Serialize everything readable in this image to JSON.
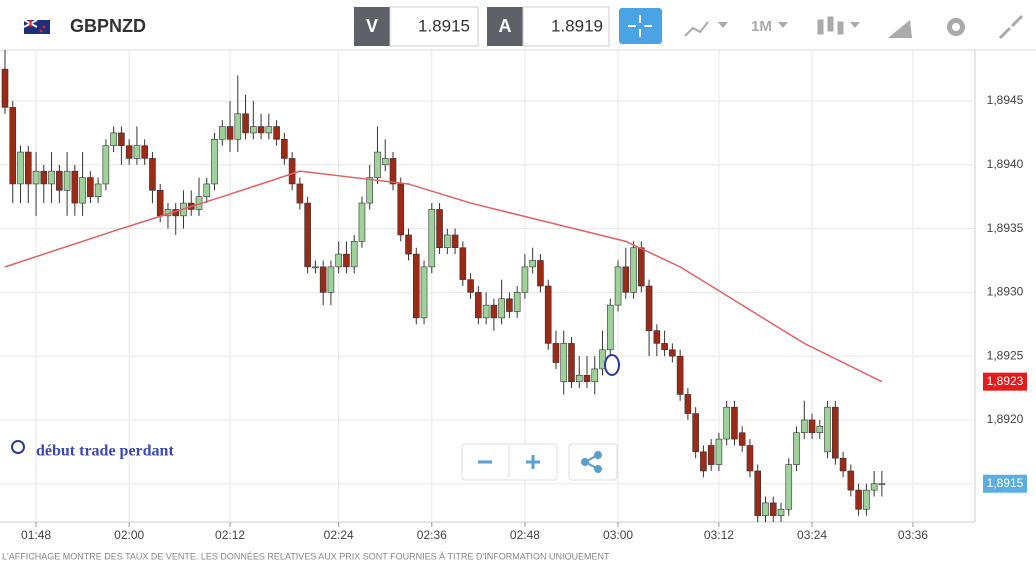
{
  "header": {
    "symbol": "GBPNZD",
    "bid_label": "V",
    "bid": "1.8915",
    "ask_label": "A",
    "ask": "1.8919",
    "timeframe": "1M"
  },
  "annotation": "début trade perdant",
  "disclaimer": "L'AFFICHAGE MONTRE DES TAUX DE VENTE. LES DONNÉES RELATIVES AUX PRIX SONT FOURNIES À TITRE D'INFORMATION UNIQUEMENT",
  "chart_data": {
    "type": "candlestick",
    "ylim": [
      1.8912,
      1.8949
    ],
    "yticks": [
      {
        "value": 1.8945,
        "label": "1,8945"
      },
      {
        "value": 1.894,
        "label": "1,8940"
      },
      {
        "value": 1.8935,
        "label": "1,8935"
      },
      {
        "value": 1.893,
        "label": "1,8930"
      },
      {
        "value": 1.8925,
        "label": "1,8925"
      },
      {
        "value": 1.892,
        "label": "1,8920"
      },
      {
        "value": 1.8915,
        "label": "1,8915"
      }
    ],
    "xticks": [
      {
        "value": 4,
        "label": "01:48"
      },
      {
        "value": 16,
        "label": "02:00"
      },
      {
        "value": 29,
        "label": "02:12"
      },
      {
        "value": 43,
        "label": "02:24"
      },
      {
        "value": 55,
        "label": "02:36"
      },
      {
        "value": 67,
        "label": "02:48"
      },
      {
        "value": 79,
        "label": "03:00"
      },
      {
        "value": 92,
        "label": "03:12"
      },
      {
        "value": 104,
        "label": "03:24"
      },
      {
        "value": 117,
        "label": "03:36"
      }
    ],
    "grid": true,
    "up_color": "#9fd19a",
    "down_color": "#9b2a17",
    "price_tags": [
      {
        "value": 1.8923,
        "label": "1,8923",
        "color": "#e31b1b"
      },
      {
        "value": 1.8915,
        "label": "1,8915",
        "color": "#5aaee0"
      }
    ],
    "moving_average": {
      "color": "#e36060",
      "x": [
        0,
        15,
        28,
        38,
        45,
        52,
        60,
        70,
        80,
        87,
        95,
        103,
        113
      ],
      "values": [
        1.8932,
        1.8935,
        1.89375,
        1.89395,
        1.8939,
        1.89385,
        1.8937,
        1.89355,
        1.8934,
        1.8932,
        1.8929,
        1.8926,
        1.8923
      ]
    },
    "candles": [
      {
        "open": 1.89475,
        "high": 1.8949,
        "low": 1.8944,
        "close": 1.89445
      },
      {
        "open": 1.89445,
        "high": 1.8945,
        "low": 1.8937,
        "close": 1.89385
      },
      {
        "open": 1.89385,
        "high": 1.89415,
        "low": 1.8937,
        "close": 1.8941
      },
      {
        "open": 1.8941,
        "high": 1.89415,
        "low": 1.8937,
        "close": 1.89385
      },
      {
        "open": 1.89385,
        "high": 1.8941,
        "low": 1.8936,
        "close": 1.89395
      },
      {
        "open": 1.89395,
        "high": 1.894,
        "low": 1.8937,
        "close": 1.89385
      },
      {
        "open": 1.89385,
        "high": 1.8941,
        "low": 1.8937,
        "close": 1.89395
      },
      {
        "open": 1.89395,
        "high": 1.894,
        "low": 1.8937,
        "close": 1.8938
      },
      {
        "open": 1.8938,
        "high": 1.8941,
        "low": 1.8936,
        "close": 1.89395
      },
      {
        "open": 1.89395,
        "high": 1.894,
        "low": 1.8936,
        "close": 1.8937
      },
      {
        "open": 1.8937,
        "high": 1.8941,
        "low": 1.8936,
        "close": 1.8939
      },
      {
        "open": 1.8939,
        "high": 1.89395,
        "low": 1.8937,
        "close": 1.89375
      },
      {
        "open": 1.89375,
        "high": 1.8939,
        "low": 1.8937,
        "close": 1.89385
      },
      {
        "open": 1.89385,
        "high": 1.8942,
        "low": 1.8938,
        "close": 1.89415
      },
      {
        "open": 1.89415,
        "high": 1.8943,
        "low": 1.8941,
        "close": 1.89425
      },
      {
        "open": 1.89425,
        "high": 1.8943,
        "low": 1.894,
        "close": 1.89415
      },
      {
        "open": 1.89415,
        "high": 1.8942,
        "low": 1.894,
        "close": 1.89405
      },
      {
        "open": 1.89405,
        "high": 1.8943,
        "low": 1.894,
        "close": 1.89415
      },
      {
        "open": 1.89415,
        "high": 1.8942,
        "low": 1.894,
        "close": 1.89405
      },
      {
        "open": 1.89405,
        "high": 1.8941,
        "low": 1.8937,
        "close": 1.8938
      },
      {
        "open": 1.8938,
        "high": 1.89385,
        "low": 1.89355,
        "close": 1.8936
      },
      {
        "open": 1.8936,
        "high": 1.8937,
        "low": 1.8935,
        "close": 1.89365
      },
      {
        "open": 1.89365,
        "high": 1.8937,
        "low": 1.89345,
        "close": 1.8936
      },
      {
        "open": 1.8936,
        "high": 1.8938,
        "low": 1.8935,
        "close": 1.8937
      },
      {
        "open": 1.8937,
        "high": 1.8938,
        "low": 1.8936,
        "close": 1.89365
      },
      {
        "open": 1.89365,
        "high": 1.8939,
        "low": 1.8936,
        "close": 1.89375
      },
      {
        "open": 1.89375,
        "high": 1.8939,
        "low": 1.8937,
        "close": 1.89385
      },
      {
        "open": 1.89385,
        "high": 1.89425,
        "low": 1.8938,
        "close": 1.8942
      },
      {
        "open": 1.8942,
        "high": 1.89435,
        "low": 1.89415,
        "close": 1.8943
      },
      {
        "open": 1.8943,
        "high": 1.8945,
        "low": 1.8941,
        "close": 1.8942
      },
      {
        "open": 1.8942,
        "high": 1.8947,
        "low": 1.8941,
        "close": 1.8944
      },
      {
        "open": 1.8944,
        "high": 1.89455,
        "low": 1.8942,
        "close": 1.89425
      },
      {
        "open": 1.89425,
        "high": 1.8945,
        "low": 1.8942,
        "close": 1.8943
      },
      {
        "open": 1.8943,
        "high": 1.8944,
        "low": 1.8942,
        "close": 1.89425
      },
      {
        "open": 1.89425,
        "high": 1.8944,
        "low": 1.8942,
        "close": 1.8943
      },
      {
        "open": 1.8943,
        "high": 1.89435,
        "low": 1.89415,
        "close": 1.8942
      },
      {
        "open": 1.8942,
        "high": 1.89425,
        "low": 1.894,
        "close": 1.89405
      },
      {
        "open": 1.89405,
        "high": 1.8941,
        "low": 1.8938,
        "close": 1.89385
      },
      {
        "open": 1.89385,
        "high": 1.8939,
        "low": 1.89365,
        "close": 1.8937
      },
      {
        "open": 1.8937,
        "high": 1.89375,
        "low": 1.89315,
        "close": 1.8932
      },
      {
        "open": 1.8932,
        "high": 1.89325,
        "low": 1.89315,
        "close": 1.8932
      },
      {
        "open": 1.8932,
        "high": 1.89325,
        "low": 1.8929,
        "close": 1.893
      },
      {
        "open": 1.893,
        "high": 1.89325,
        "low": 1.8929,
        "close": 1.8932
      },
      {
        "open": 1.8932,
        "high": 1.8934,
        "low": 1.89315,
        "close": 1.8933
      },
      {
        "open": 1.8933,
        "high": 1.8934,
        "low": 1.89315,
        "close": 1.8932
      },
      {
        "open": 1.8932,
        "high": 1.89345,
        "low": 1.89315,
        "close": 1.8934
      },
      {
        "open": 1.8934,
        "high": 1.89375,
        "low": 1.89335,
        "close": 1.8937
      },
      {
        "open": 1.8937,
        "high": 1.894,
        "low": 1.89365,
        "close": 1.8939
      },
      {
        "open": 1.8939,
        "high": 1.8943,
        "low": 1.89385,
        "close": 1.8941
      },
      {
        "open": 1.894,
        "high": 1.8942,
        "low": 1.89395,
        "close": 1.89405
      },
      {
        "open": 1.89405,
        "high": 1.8941,
        "low": 1.8938,
        "close": 1.89385
      },
      {
        "open": 1.89385,
        "high": 1.8939,
        "low": 1.8934,
        "close": 1.89345
      },
      {
        "open": 1.89345,
        "high": 1.8935,
        "low": 1.89325,
        "close": 1.8933
      },
      {
        "open": 1.8933,
        "high": 1.89335,
        "low": 1.89275,
        "close": 1.8928
      },
      {
        "open": 1.8928,
        "high": 1.89325,
        "low": 1.89275,
        "close": 1.8932
      },
      {
        "open": 1.8932,
        "high": 1.8937,
        "low": 1.89315,
        "close": 1.89365
      },
      {
        "open": 1.89365,
        "high": 1.8937,
        "low": 1.8933,
        "close": 1.89335
      },
      {
        "open": 1.89335,
        "high": 1.8935,
        "low": 1.8933,
        "close": 1.89345
      },
      {
        "open": 1.89345,
        "high": 1.8935,
        "low": 1.8933,
        "close": 1.89335
      },
      {
        "open": 1.89335,
        "high": 1.8934,
        "low": 1.89305,
        "close": 1.8931
      },
      {
        "open": 1.8931,
        "high": 1.89315,
        "low": 1.89295,
        "close": 1.893
      },
      {
        "open": 1.893,
        "high": 1.89305,
        "low": 1.89275,
        "close": 1.8928
      },
      {
        "open": 1.8928,
        "high": 1.893,
        "low": 1.89275,
        "close": 1.8929
      },
      {
        "open": 1.8929,
        "high": 1.89295,
        "low": 1.8927,
        "close": 1.8928
      },
      {
        "open": 1.8928,
        "high": 1.8931,
        "low": 1.89275,
        "close": 1.89295
      },
      {
        "open": 1.89295,
        "high": 1.893,
        "low": 1.8928,
        "close": 1.89285
      },
      {
        "open": 1.89285,
        "high": 1.89305,
        "low": 1.8928,
        "close": 1.893
      },
      {
        "open": 1.893,
        "high": 1.8933,
        "low": 1.89295,
        "close": 1.8932
      },
      {
        "open": 1.8932,
        "high": 1.89335,
        "low": 1.89315,
        "close": 1.89325
      },
      {
        "open": 1.89325,
        "high": 1.8933,
        "low": 1.893,
        "close": 1.89305
      },
      {
        "open": 1.89305,
        "high": 1.8931,
        "low": 1.89255,
        "close": 1.8926
      },
      {
        "open": 1.8926,
        "high": 1.8927,
        "low": 1.8924,
        "close": 1.89245
      },
      {
        "open": 1.8923,
        "high": 1.8927,
        "low": 1.8922,
        "close": 1.8926
      },
      {
        "open": 1.8926,
        "high": 1.89265,
        "low": 1.89225,
        "close": 1.8923
      },
      {
        "open": 1.8923,
        "high": 1.8925,
        "low": 1.89225,
        "close": 1.89235
      },
      {
        "open": 1.89235,
        "high": 1.8925,
        "low": 1.89225,
        "close": 1.8923
      },
      {
        "open": 1.8923,
        "high": 1.8925,
        "low": 1.8922,
        "close": 1.8924
      },
      {
        "open": 1.8924,
        "high": 1.8927,
        "low": 1.89235,
        "close": 1.89255
      },
      {
        "open": 1.89255,
        "high": 1.89295,
        "low": 1.8925,
        "close": 1.8929
      },
      {
        "open": 1.8929,
        "high": 1.89325,
        "low": 1.89285,
        "close": 1.8932
      },
      {
        "open": 1.8932,
        "high": 1.89335,
        "low": 1.89295,
        "close": 1.893
      },
      {
        "open": 1.893,
        "high": 1.8934,
        "low": 1.89295,
        "close": 1.89335
      },
      {
        "open": 1.89335,
        "high": 1.8934,
        "low": 1.893,
        "close": 1.89305
      },
      {
        "open": 1.89305,
        "high": 1.8931,
        "low": 1.8925,
        "close": 1.8927
      },
      {
        "open": 1.8927,
        "high": 1.89275,
        "low": 1.8925,
        "close": 1.8926
      },
      {
        "open": 1.8926,
        "high": 1.8927,
        "low": 1.8925,
        "close": 1.89255
      },
      {
        "open": 1.89255,
        "high": 1.8926,
        "low": 1.89245,
        "close": 1.8925
      },
      {
        "open": 1.8925,
        "high": 1.89255,
        "low": 1.89215,
        "close": 1.8922
      },
      {
        "open": 1.8922,
        "high": 1.89225,
        "low": 1.892,
        "close": 1.89205
      },
      {
        "open": 1.89205,
        "high": 1.8921,
        "low": 1.8917,
        "close": 1.89175
      },
      {
        "open": 1.89175,
        "high": 1.8918,
        "low": 1.89155,
        "close": 1.8916
      },
      {
        "open": 1.8918,
        "high": 1.89185,
        "low": 1.8916,
        "close": 1.89165
      },
      {
        "open": 1.89165,
        "high": 1.8919,
        "low": 1.8916,
        "close": 1.89185
      },
      {
        "open": 1.89185,
        "high": 1.89215,
        "low": 1.8918,
        "close": 1.8921
      },
      {
        "open": 1.8921,
        "high": 1.89215,
        "low": 1.8918,
        "close": 1.89185
      },
      {
        "open": 1.8919,
        "high": 1.89195,
        "low": 1.89175,
        "close": 1.8918
      },
      {
        "open": 1.8918,
        "high": 1.89185,
        "low": 1.89155,
        "close": 1.8916
      },
      {
        "open": 1.8916,
        "high": 1.89165,
        "low": 1.8912,
        "close": 1.89125
      },
      {
        "open": 1.89125,
        "high": 1.8914,
        "low": 1.8912,
        "close": 1.89135
      },
      {
        "open": 1.89135,
        "high": 1.8914,
        "low": 1.8912,
        "close": 1.89125
      },
      {
        "open": 1.89125,
        "high": 1.89135,
        "low": 1.8912,
        "close": 1.8913
      },
      {
        "open": 1.8913,
        "high": 1.8917,
        "low": 1.89125,
        "close": 1.89165
      },
      {
        "open": 1.89165,
        "high": 1.89195,
        "low": 1.8916,
        "close": 1.8919
      },
      {
        "open": 1.8919,
        "high": 1.89215,
        "low": 1.89185,
        "close": 1.892
      },
      {
        "open": 1.892,
        "high": 1.89205,
        "low": 1.89185,
        "close": 1.8919
      },
      {
        "open": 1.8919,
        "high": 1.892,
        "low": 1.89185,
        "close": 1.89195
      },
      {
        "open": 1.89175,
        "high": 1.89215,
        "low": 1.8917,
        "close": 1.8921
      },
      {
        "open": 1.8921,
        "high": 1.89215,
        "low": 1.89165,
        "close": 1.8917
      },
      {
        "open": 1.8917,
        "high": 1.89175,
        "low": 1.89155,
        "close": 1.8916
      },
      {
        "open": 1.8916,
        "high": 1.89165,
        "low": 1.8914,
        "close": 1.89145
      },
      {
        "open": 1.89145,
        "high": 1.8915,
        "low": 1.89125,
        "close": 1.8913
      },
      {
        "open": 1.8913,
        "high": 1.8915,
        "low": 1.89125,
        "close": 1.89145
      },
      {
        "open": 1.89145,
        "high": 1.8916,
        "low": 1.8914,
        "close": 1.8915
      },
      {
        "open": 1.8915,
        "high": 1.8916,
        "low": 1.8914,
        "close": 1.8915
      }
    ]
  }
}
